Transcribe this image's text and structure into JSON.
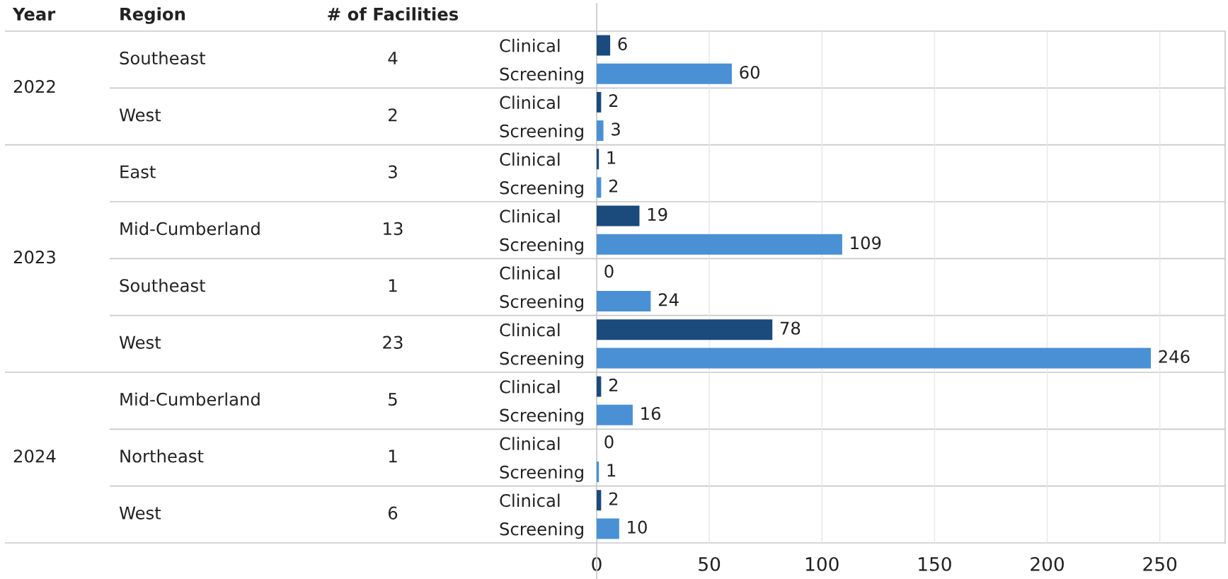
{
  "chart_data": [
    {
      "type": "other",
      "categories": [
        "Year",
        "Region",
        "# of Facilities"
      ],
      "cell_labels": [
        [
          "2022",
          "Southeast",
          "4"
        ],
        [
          null,
          "West",
          "2"
        ],
        [
          "2023",
          "East",
          "3"
        ],
        [
          null,
          "Mid-Cumberland",
          "13"
        ],
        [
          null,
          "Southeast",
          "1"
        ],
        [
          null,
          "West",
          "23"
        ],
        [
          "2024",
          "Mid-Cumberland",
          "5"
        ],
        [
          null,
          "Northeast",
          "1"
        ],
        [
          null,
          "West",
          "6"
        ]
      ]
    },
    {
      "type": "bar",
      "orientation": "horizontal",
      "categories": [
        "Clinical",
        "Screening",
        "Clinical",
        "Screening",
        "Clinical",
        "Screening",
        "Clinical",
        "Screening",
        "Clinical",
        "Screening",
        "Clinical",
        "Screening",
        "Clinical",
        "Screening",
        "Clinical",
        "Screening",
        "Clinical",
        "Screening"
      ],
      "values": [
        6,
        60,
        2,
        3,
        1,
        2,
        19,
        109,
        0,
        24,
        78,
        246,
        2,
        16,
        0,
        1,
        2,
        10
      ],
      "colors": [
        "#1b4a7c",
        "#4a90d4",
        "#1b4a7c",
        "#4a90d4",
        "#1b4a7c",
        "#4a90d4",
        "#1b4a7c",
        "#4a90d4",
        "#1b4a7c",
        "#4a90d4",
        "#1b4a7c",
        "#4a90d4",
        "#1b4a7c",
        "#4a90d4",
        "#1b4a7c",
        "#4a90d4",
        "#1b4a7c",
        "#4a90d4"
      ],
      "xlim": [
        0,
        279
      ],
      "xticks": [
        0,
        50,
        100,
        150,
        200,
        250
      ],
      "grid": "x",
      "data_labels": true
    }
  ]
}
